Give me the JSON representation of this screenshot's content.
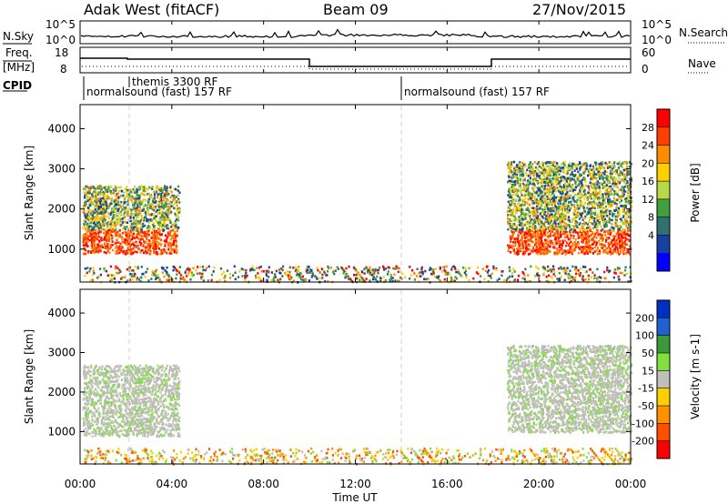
{
  "header": {
    "radar": "Adak West (fitACF)",
    "beam": "Beam 09",
    "date": "27/Nov/2015"
  },
  "top_panels": {
    "nsky_label": "N.Sky",
    "nsearch_label": "N.Search",
    "nsky_ticks": [
      "10^5",
      "10^0"
    ],
    "freq_label_1": "Freq.",
    "freq_label_2": "[MHz]",
    "freq_ticks": [
      "18",
      "8"
    ],
    "nave_ticks": [
      "60",
      "0"
    ],
    "nave_label": "Nave",
    "cpid_label": "CPID",
    "cpid_segments": [
      "themis 3300 RF",
      "normalsound (fast) 157 RF",
      "normalsound (fast) 157 RF"
    ]
  },
  "chart_data": [
    {
      "type": "heatmap",
      "name": "power",
      "ylabel": "Slant Range [km]",
      "x_range_hours": [
        0,
        24
      ],
      "ylim": [
        180,
        4600
      ],
      "y_ticks": [
        "1000",
        "2000",
        "3000",
        "4000"
      ],
      "colorbar_label": "Power [dB]",
      "colorbar_ticks": [
        "28",
        "24",
        "20",
        "16",
        "12",
        "8",
        "4"
      ],
      "colorbar_colors": [
        "#ff0000",
        "#ff4000",
        "#ff8c00",
        "#ffd000",
        "#b8d84a",
        "#40a040",
        "#307070",
        "#1840a0",
        "#0000ff"
      ],
      "clusters": [
        {
          "x0": 0.1,
          "x1": 4.2,
          "y0": 900,
          "y1": 1500,
          "level": "high"
        },
        {
          "x0": 0.1,
          "x1": 4.3,
          "y0": 1500,
          "y1": 2600,
          "level": "mid"
        },
        {
          "x0": 18.6,
          "x1": 24.0,
          "y0": 900,
          "y1": 1500,
          "level": "high"
        },
        {
          "x0": 18.6,
          "x1": 24.0,
          "y0": 1500,
          "y1": 3200,
          "level": "mid"
        },
        {
          "x0": 0.1,
          "x1": 24.0,
          "y0": 200,
          "y1": 600,
          "level": "low"
        }
      ]
    },
    {
      "type": "heatmap",
      "name": "velocity",
      "ylabel": "Slant Range [km]",
      "x_range_hours": [
        0,
        24
      ],
      "ylim": [
        180,
        4600
      ],
      "y_ticks": [
        "1000",
        "2000",
        "3000",
        "4000"
      ],
      "x_ticks": [
        "00:00",
        "04:00",
        "08:00",
        "12:00",
        "16:00",
        "20:00",
        "00:00"
      ],
      "xlabel": "Time UT",
      "colorbar_label": "Velocity [m s-1]",
      "colorbar_ticks": [
        "200",
        "100",
        "50",
        "15",
        "-15",
        "-50",
        "-100",
        "-200"
      ],
      "colorbar_colors": [
        "#0030c0",
        "#2060d0",
        "#3a9a3a",
        "#80e040",
        "#c0c0b8",
        "#ffd000",
        "#ff9000",
        "#ff5000",
        "#ff0000"
      ],
      "clusters": [
        {
          "x0": 0.1,
          "x1": 4.3,
          "y0": 900,
          "y1": 2700,
          "level": "gray"
        },
        {
          "x0": 18.6,
          "x1": 24.0,
          "y0": 1000,
          "y1": 3200,
          "level": "gray"
        },
        {
          "x0": 0.1,
          "x1": 24.0,
          "y0": 200,
          "y1": 600,
          "level": "orange"
        }
      ]
    }
  ]
}
